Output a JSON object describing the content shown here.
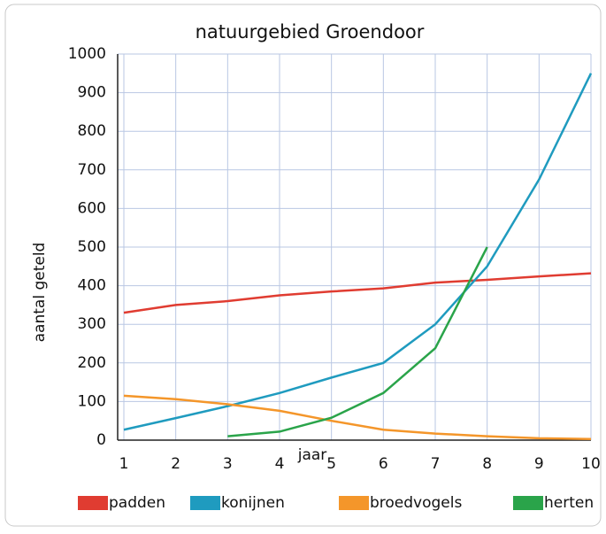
{
  "chart_data": {
    "type": "line",
    "title": "natuurgebied Groendoor",
    "x_label": "jaar",
    "y_label": "aantal geteld",
    "x": [
      1,
      2,
      3,
      4,
      5,
      6,
      7,
      8,
      9,
      10
    ],
    "series": [
      {
        "name": "padden",
        "color": "#e03c31",
        "values": [
          330,
          350,
          360,
          375,
          385,
          393,
          408,
          415,
          424,
          432
        ]
      },
      {
        "name": "konijnen",
        "color": "#1f9bbf",
        "values": [
          27,
          57,
          88,
          122,
          162,
          200,
          300,
          450,
          675,
          950
        ]
      },
      {
        "name": "broedvogels",
        "color": "#f4962a",
        "values": [
          115,
          106,
          93,
          76,
          50,
          27,
          17,
          10,
          5,
          3
        ]
      },
      {
        "name": "herten",
        "color": "#2aa44a",
        "values": [
          null,
          null,
          10,
          22,
          58,
          122,
          238,
          500,
          null,
          null
        ]
      }
    ],
    "xlim": [
      1,
      10
    ],
    "xticks": [
      1,
      2,
      3,
      4,
      5,
      6,
      7,
      8,
      9,
      10
    ],
    "ylim": [
      0,
      1000
    ],
    "yticks": [
      0,
      100,
      200,
      300,
      400,
      500,
      600,
      700,
      800,
      900,
      1000
    ],
    "grid": true,
    "legend": "bottom"
  }
}
